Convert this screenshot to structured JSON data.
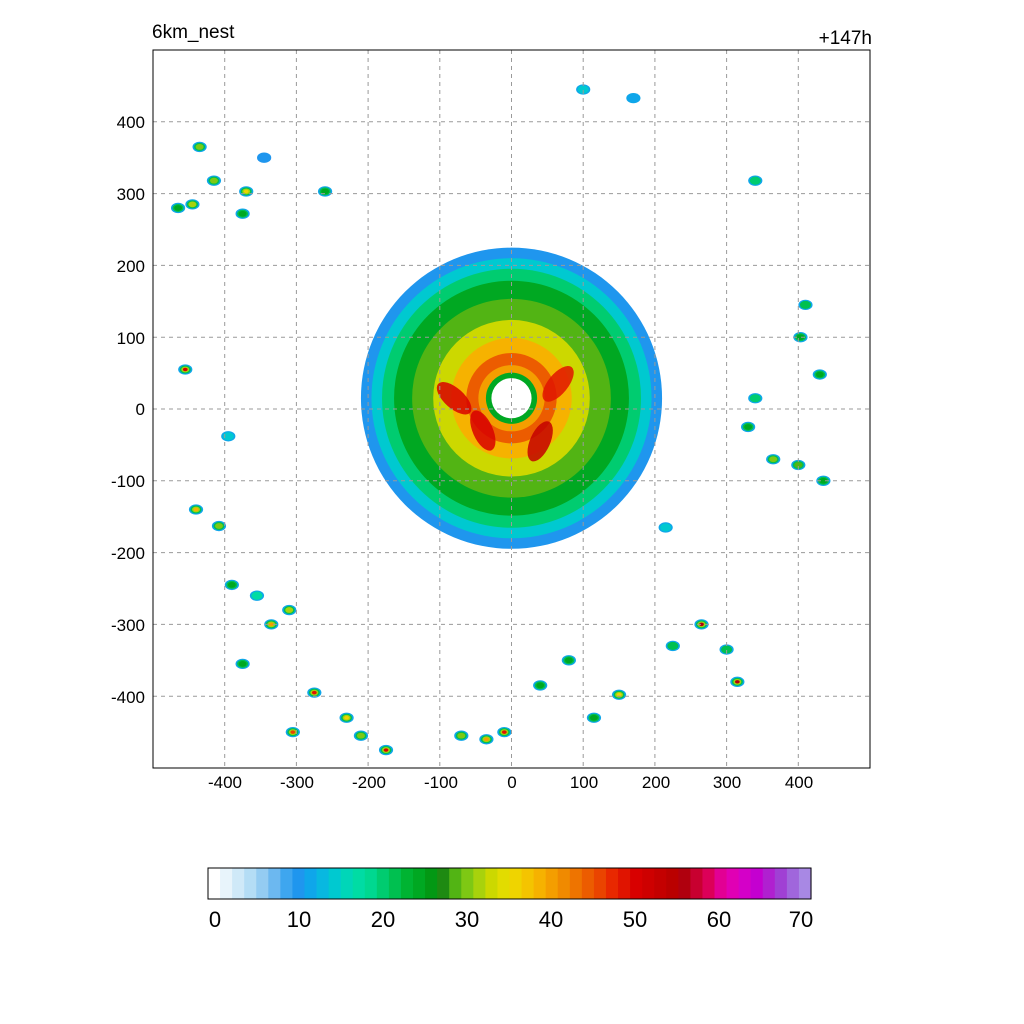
{
  "header": {
    "left_title": "6km_nest",
    "right_title": "+147h"
  },
  "map": {
    "x_ticks": [
      "-400",
      "-300",
      "-200",
      "-100",
      "0",
      "100",
      "200",
      "300",
      "400"
    ],
    "y_ticks": [
      "400",
      "300",
      "200",
      "100",
      "0",
      "-100",
      "-200",
      "-300",
      "-400"
    ],
    "x_range": [
      -500,
      500
    ],
    "y_range": [
      -500,
      500
    ],
    "grid": "dashed",
    "storm_center": [
      0,
      15
    ],
    "storm_outer_radius": 210,
    "eye_radius": 28,
    "cells": [
      {
        "x": -455,
        "y": 55,
        "v": 50
      },
      {
        "x": -435,
        "y": 365,
        "v": 30
      },
      {
        "x": -445,
        "y": 285,
        "v": 32
      },
      {
        "x": -415,
        "y": 318,
        "v": 30
      },
      {
        "x": -370,
        "y": 303,
        "v": 35
      },
      {
        "x": -375,
        "y": 272,
        "v": 25
      },
      {
        "x": -465,
        "y": 280,
        "v": 25
      },
      {
        "x": -260,
        "y": 303,
        "v": 25
      },
      {
        "x": -440,
        "y": -140,
        "v": 38
      },
      {
        "x": -408,
        "y": -163,
        "v": 30
      },
      {
        "x": -390,
        "y": -245,
        "v": 25
      },
      {
        "x": -335,
        "y": -300,
        "v": 40
      },
      {
        "x": -310,
        "y": -280,
        "v": 32
      },
      {
        "x": -375,
        "y": -355,
        "v": 25
      },
      {
        "x": -275,
        "y": -395,
        "v": 48
      },
      {
        "x": -305,
        "y": -450,
        "v": 45
      },
      {
        "x": -230,
        "y": -430,
        "v": 35
      },
      {
        "x": -210,
        "y": -455,
        "v": 30
      },
      {
        "x": -175,
        "y": -475,
        "v": 50
      },
      {
        "x": -70,
        "y": -455,
        "v": 30
      },
      {
        "x": -35,
        "y": -460,
        "v": 40
      },
      {
        "x": -10,
        "y": -450,
        "v": 48
      },
      {
        "x": 40,
        "y": -385,
        "v": 25
      },
      {
        "x": 80,
        "y": -350,
        "v": 25
      },
      {
        "x": 150,
        "y": -398,
        "v": 35
      },
      {
        "x": 115,
        "y": -430,
        "v": 25
      },
      {
        "x": 265,
        "y": -300,
        "v": 55
      },
      {
        "x": 315,
        "y": -380,
        "v": 55
      },
      {
        "x": 340,
        "y": 318,
        "v": 20
      },
      {
        "x": 410,
        "y": 145,
        "v": 22
      },
      {
        "x": 403,
        "y": 100,
        "v": 25
      },
      {
        "x": 430,
        "y": 48,
        "v": 25
      },
      {
        "x": 365,
        "y": -70,
        "v": 30
      },
      {
        "x": 400,
        "y": -78,
        "v": 28
      },
      {
        "x": 435,
        "y": -100,
        "v": 25
      },
      {
        "x": 300,
        "y": -335,
        "v": 22
      },
      {
        "x": 225,
        "y": -330,
        "v": 22
      },
      {
        "x": 330,
        "y": -25,
        "v": 25
      },
      {
        "x": 340,
        "y": 15,
        "v": 20
      },
      {
        "x": -395,
        "y": -38,
        "v": 15
      },
      {
        "x": -355,
        "y": -260,
        "v": 18
      },
      {
        "x": -345,
        "y": 350,
        "v": 10
      },
      {
        "x": 100,
        "y": 445,
        "v": 15
      },
      {
        "x": 170,
        "y": 433,
        "v": 12
      },
      {
        "x": 215,
        "y": -165,
        "v": 15
      }
    ]
  },
  "colorbar": {
    "min": 0,
    "max": 70,
    "labels": [
      "0",
      "10",
      "20",
      "30",
      "40",
      "50",
      "60",
      "70"
    ],
    "colors": [
      "#ffffff",
      "#e8f4fb",
      "#cfe9f8",
      "#b4ddf5",
      "#94ccf2",
      "#6cb8f0",
      "#3ea6ef",
      "#1f96ee",
      "#0fa6ea",
      "#08b8e0",
      "#00c9d0",
      "#00d6b8",
      "#00dca4",
      "#00d890",
      "#00cc70",
      "#00c050",
      "#00b432",
      "#00a822",
      "#039814",
      "#1e8a12",
      "#52b414",
      "#7ec814",
      "#a8d20c",
      "#ccd800",
      "#e2dc00",
      "#efd400",
      "#f4c400",
      "#f6b200",
      "#f49e00",
      "#f08a00",
      "#ee7400",
      "#ec5c00",
      "#ea4400",
      "#e82800",
      "#e01400",
      "#d80000",
      "#ce0000",
      "#c40000",
      "#ba0000",
      "#b0000e",
      "#c80030",
      "#dc0058",
      "#e20094",
      "#e000b4",
      "#d400c8",
      "#c400d0",
      "#b020d0",
      "#a040d4",
      "#a066dc",
      "#a888e4"
    ]
  }
}
